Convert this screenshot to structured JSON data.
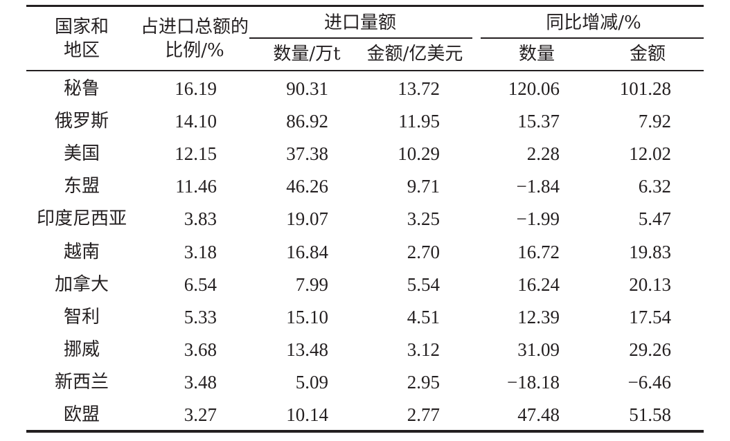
{
  "headers": {
    "region_line1": "国家和",
    "region_line2": "地区",
    "share_line1": "占进口总额的",
    "share_line2": "比例/%",
    "import_group": "进口量额",
    "yoy_group": "同比增减/%",
    "import_qty": "数量/万t",
    "import_amt": "金额/亿美元",
    "yoy_qty": "数量",
    "yoy_amt": "金额"
  },
  "rows": [
    {
      "region": "秘鲁",
      "share": "16.19",
      "qty": "90.31",
      "amt": "13.72",
      "yoy_qty": "120.06",
      "yoy_amt": "101.28"
    },
    {
      "region": "俄罗斯",
      "share": "14.10",
      "qty": "86.92",
      "amt": "11.95",
      "yoy_qty": "15.37",
      "yoy_amt": "7.92"
    },
    {
      "region": "美国",
      "share": "12.15",
      "qty": "37.38",
      "amt": "10.29",
      "yoy_qty": "2.28",
      "yoy_amt": "12.02"
    },
    {
      "region": "东盟",
      "share": "11.46",
      "qty": "46.26",
      "amt": "9.71",
      "yoy_qty": "−1.84",
      "yoy_amt": "6.32"
    },
    {
      "region": "印度尼西亚",
      "share": "3.83",
      "qty": "19.07",
      "amt": "3.25",
      "yoy_qty": "−1.99",
      "yoy_amt": "5.47"
    },
    {
      "region": "越南",
      "share": "3.18",
      "qty": "16.84",
      "amt": "2.70",
      "yoy_qty": "16.72",
      "yoy_amt": "19.83"
    },
    {
      "region": "加拿大",
      "share": "6.54",
      "qty": "7.99",
      "amt": "5.54",
      "yoy_qty": "16.24",
      "yoy_amt": "20.13"
    },
    {
      "region": "智利",
      "share": "5.33",
      "qty": "15.10",
      "amt": "4.51",
      "yoy_qty": "12.39",
      "yoy_amt": "17.54"
    },
    {
      "region": "挪威",
      "share": "3.68",
      "qty": "13.48",
      "amt": "3.12",
      "yoy_qty": "31.09",
      "yoy_amt": "29.26"
    },
    {
      "region": "新西兰",
      "share": "3.48",
      "qty": "5.09",
      "amt": "2.95",
      "yoy_qty": "−18.18",
      "yoy_amt": "−6.46"
    },
    {
      "region": "欧盟",
      "share": "3.27",
      "qty": "10.14",
      "amt": "2.77",
      "yoy_qty": "47.48",
      "yoy_amt": "51.58"
    }
  ]
}
